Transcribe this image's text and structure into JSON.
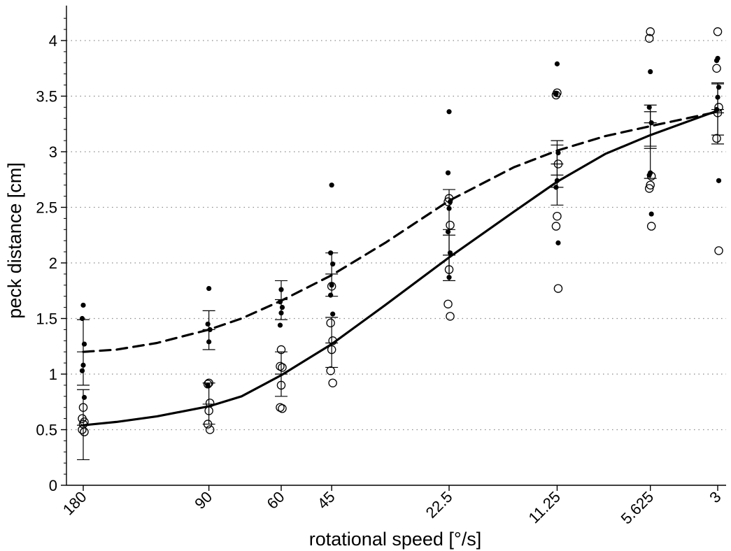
{
  "chart_data": {
    "type": "scatter",
    "xlabel": "rotational speed [°/s]",
    "ylabel": "peck distance [cm]",
    "x_ticks": [
      {
        "value": 180,
        "label": "180"
      },
      {
        "value": 90,
        "label": "90"
      },
      {
        "value": 60,
        "label": "60"
      },
      {
        "value": 45,
        "label": "45"
      },
      {
        "value": 22.5,
        "label": "22.5"
      },
      {
        "value": 11.25,
        "label": "11.25"
      },
      {
        "value": 5.625,
        "label": "5.625"
      },
      {
        "value": 3,
        "label": "3"
      }
    ],
    "y_ticks": [
      {
        "value": 0,
        "label": "0"
      },
      {
        "value": 0.5,
        "label": "0.5"
      },
      {
        "value": 1,
        "label": "1"
      },
      {
        "value": 1.5,
        "label": "1.5"
      },
      {
        "value": 2,
        "label": "2"
      },
      {
        "value": 2.5,
        "label": "2.5"
      },
      {
        "value": 3,
        "label": "3"
      },
      {
        "value": 3.5,
        "label": "3.5"
      },
      {
        "value": 4,
        "label": "4"
      }
    ],
    "ylim": [
      0,
      4.3
    ],
    "grid": "horizontal dotted",
    "legend": "none",
    "series": [
      {
        "marker": "filled-circle",
        "color": "#000000",
        "points": [
          {
            "x": 180,
            "y": [
              1.62,
              1.5,
              1.27,
              1.08,
              1.03,
              0.79
            ]
          },
          {
            "x": 90,
            "y": [
              1.77,
              1.45,
              1.4,
              1.29,
              0.9
            ]
          },
          {
            "x": 60,
            "y": [
              1.76,
              1.65,
              1.6,
              1.55,
              1.44
            ]
          },
          {
            "x": 45,
            "y": [
              2.7,
              2.09,
              1.99,
              1.8,
              1.71,
              1.54
            ]
          },
          {
            "x": 22.5,
            "y": [
              3.36,
              2.81,
              2.55,
              2.49,
              2.28,
              2.09,
              1.87
            ]
          },
          {
            "x": 11.25,
            "y": [
              3.79,
              3.52,
              2.99,
              2.74,
              2.68,
              2.18
            ]
          },
          {
            "x": 5.625,
            "y": [
              3.72,
              3.4,
              3.26,
              2.81,
              2.79,
              2.44
            ]
          },
          {
            "x": 3,
            "y": [
              3.84,
              3.82,
              3.58,
              3.49,
              3.38,
              2.74
            ]
          }
        ],
        "mean": [
          1.2,
          1.4,
          1.67,
          1.9,
          2.25,
          2.89,
          3.03,
          3.35
        ],
        "error_low": [
          0.9,
          1.22,
          1.49,
          1.7,
          1.84,
          2.68,
          2.76,
          3.07
        ],
        "error_high": [
          1.49,
          1.57,
          1.84,
          2.09,
          2.66,
          3.1,
          3.36,
          3.62
        ],
        "fit": {
          "style": "dashed",
          "x": [
            180,
            150,
            120,
            90,
            75,
            60,
            45,
            33,
            22.5,
            15,
            11.25,
            8,
            5.625,
            3
          ],
          "y": [
            1.2,
            1.22,
            1.28,
            1.4,
            1.5,
            1.66,
            1.89,
            2.18,
            2.56,
            2.86,
            3.01,
            3.14,
            3.23,
            3.36
          ]
        }
      },
      {
        "marker": "open-circle",
        "color": "#000000",
        "points": [
          {
            "x": 180,
            "y": [
              0.7,
              0.6,
              0.57,
              0.55,
              0.5,
              0.48
            ]
          },
          {
            "x": 90,
            "y": [
              0.92,
              0.91,
              0.74,
              0.67,
              0.55,
              0.5
            ]
          },
          {
            "x": 60,
            "y": [
              1.22,
              1.07,
              1.06,
              0.9,
              0.7,
              0.69
            ]
          },
          {
            "x": 45,
            "y": [
              1.79,
              1.46,
              1.3,
              1.22,
              1.03,
              0.92
            ]
          },
          {
            "x": 22.5,
            "y": [
              2.58,
              2.55,
              2.34,
              1.94,
              1.63,
              1.52
            ]
          },
          {
            "x": 11.25,
            "y": [
              3.53,
              3.51,
              2.89,
              2.42,
              2.33,
              1.77
            ]
          },
          {
            "x": 5.625,
            "y": [
              4.08,
              4.02,
              2.78,
              2.7,
              2.67,
              2.33
            ]
          },
          {
            "x": 3,
            "y": [
              4.08,
              3.75,
              3.4,
              3.35,
              3.12,
              2.11
            ]
          }
        ],
        "mean": [
          0.54,
          0.73,
          1.0,
          1.28,
          2.07,
          2.79,
          3.26,
          3.38
        ],
        "error_low": [
          0.23,
          0.55,
          0.8,
          1.06,
          1.84,
          2.52,
          3.05,
          3.15
        ],
        "error_high": [
          0.86,
          0.92,
          1.2,
          1.51,
          2.3,
          3.06,
          3.42,
          3.61
        ],
        "fit": {
          "style": "solid",
          "x": [
            180,
            150,
            120,
            90,
            75,
            60,
            45,
            33,
            22.5,
            15,
            11.25,
            8,
            5.625,
            3
          ],
          "y": [
            0.54,
            0.57,
            0.62,
            0.71,
            0.8,
            0.99,
            1.27,
            1.62,
            2.05,
            2.46,
            2.73,
            2.98,
            3.15,
            3.37
          ]
        }
      }
    ]
  }
}
